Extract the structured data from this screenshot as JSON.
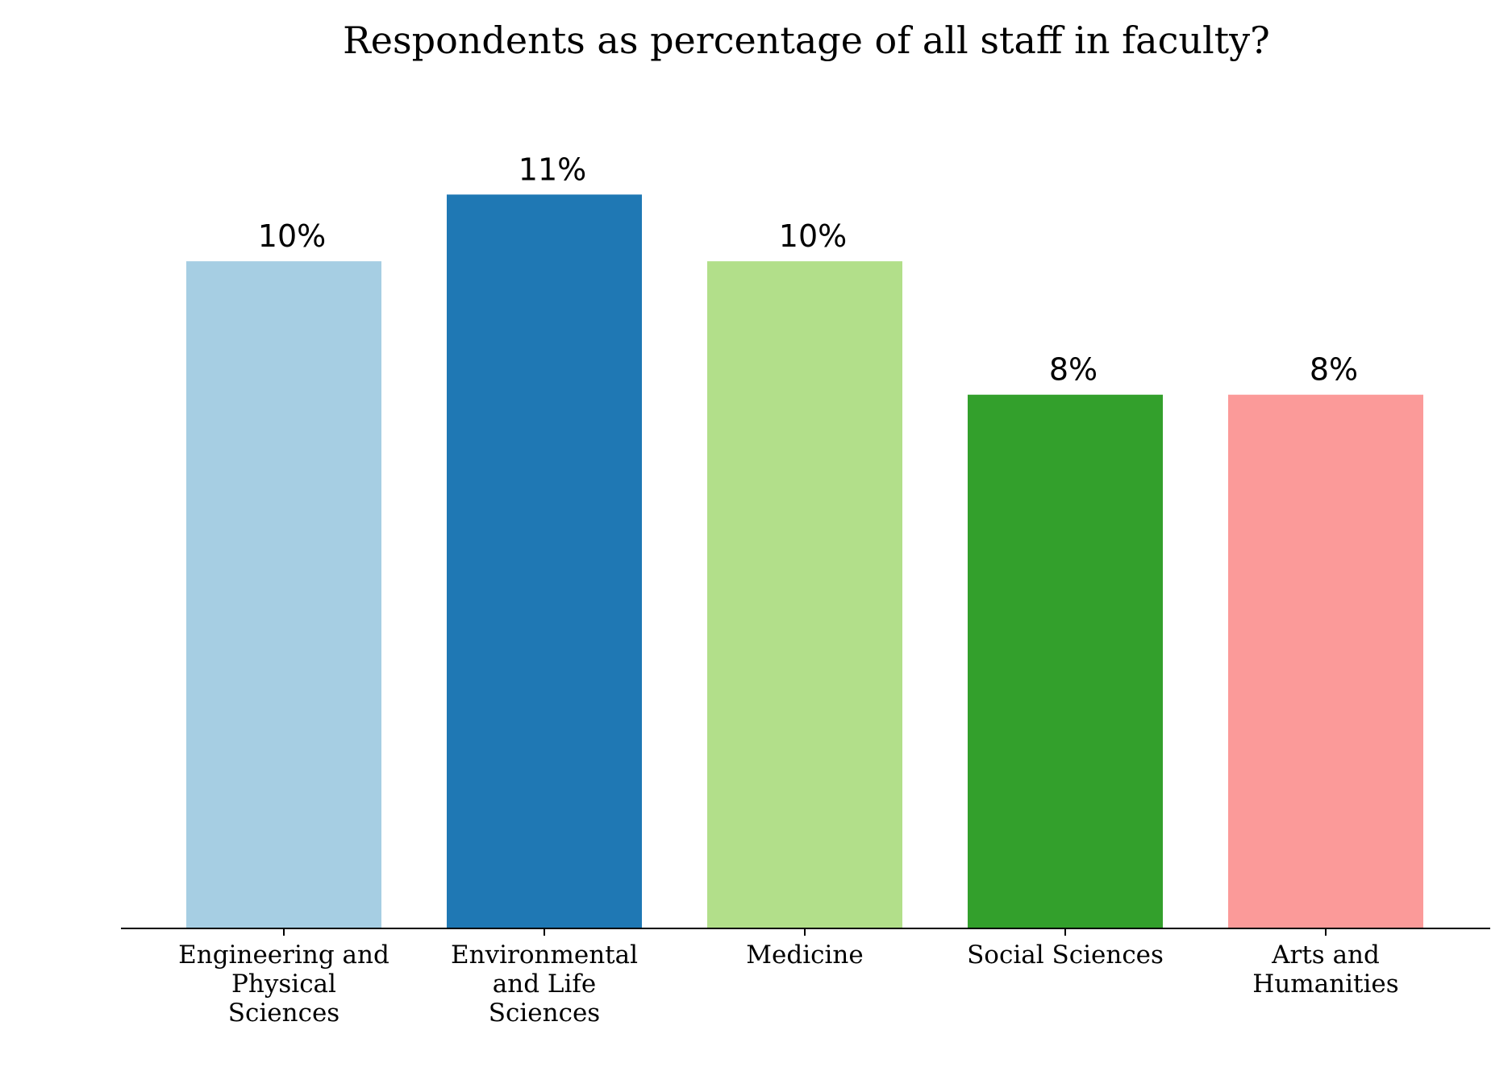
{
  "chart_data": {
    "type": "bar",
    "title": "Respondents as percentage of all staff in faculty?",
    "categories": [
      "Engineering and Physical Sciences",
      "Environmental and Life Sciences",
      "Medicine",
      "Social Sciences",
      "Arts and Humanities"
    ],
    "tick_label_lines": [
      [
        "Engineering and",
        "Physical",
        "Sciences"
      ],
      [
        "Environmental",
        "and Life",
        "Sciences"
      ],
      [
        "Medicine"
      ],
      [
        "Social Sciences"
      ],
      [
        "Arts and",
        "Humanities"
      ]
    ],
    "values": [
      10,
      11,
      10,
      8,
      8
    ],
    "data_labels": [
      "10%",
      "11%",
      "10%",
      "8%",
      "8%"
    ],
    "colors": [
      "#a6cee3",
      "#1f78b4",
      "#b2df8a",
      "#33a02c",
      "#fb9a99"
    ],
    "xlabel": "",
    "ylabel": "",
    "ylim": [
      0,
      11.5
    ],
    "grid": false,
    "legend": "none",
    "axis_color": "#000000"
  }
}
